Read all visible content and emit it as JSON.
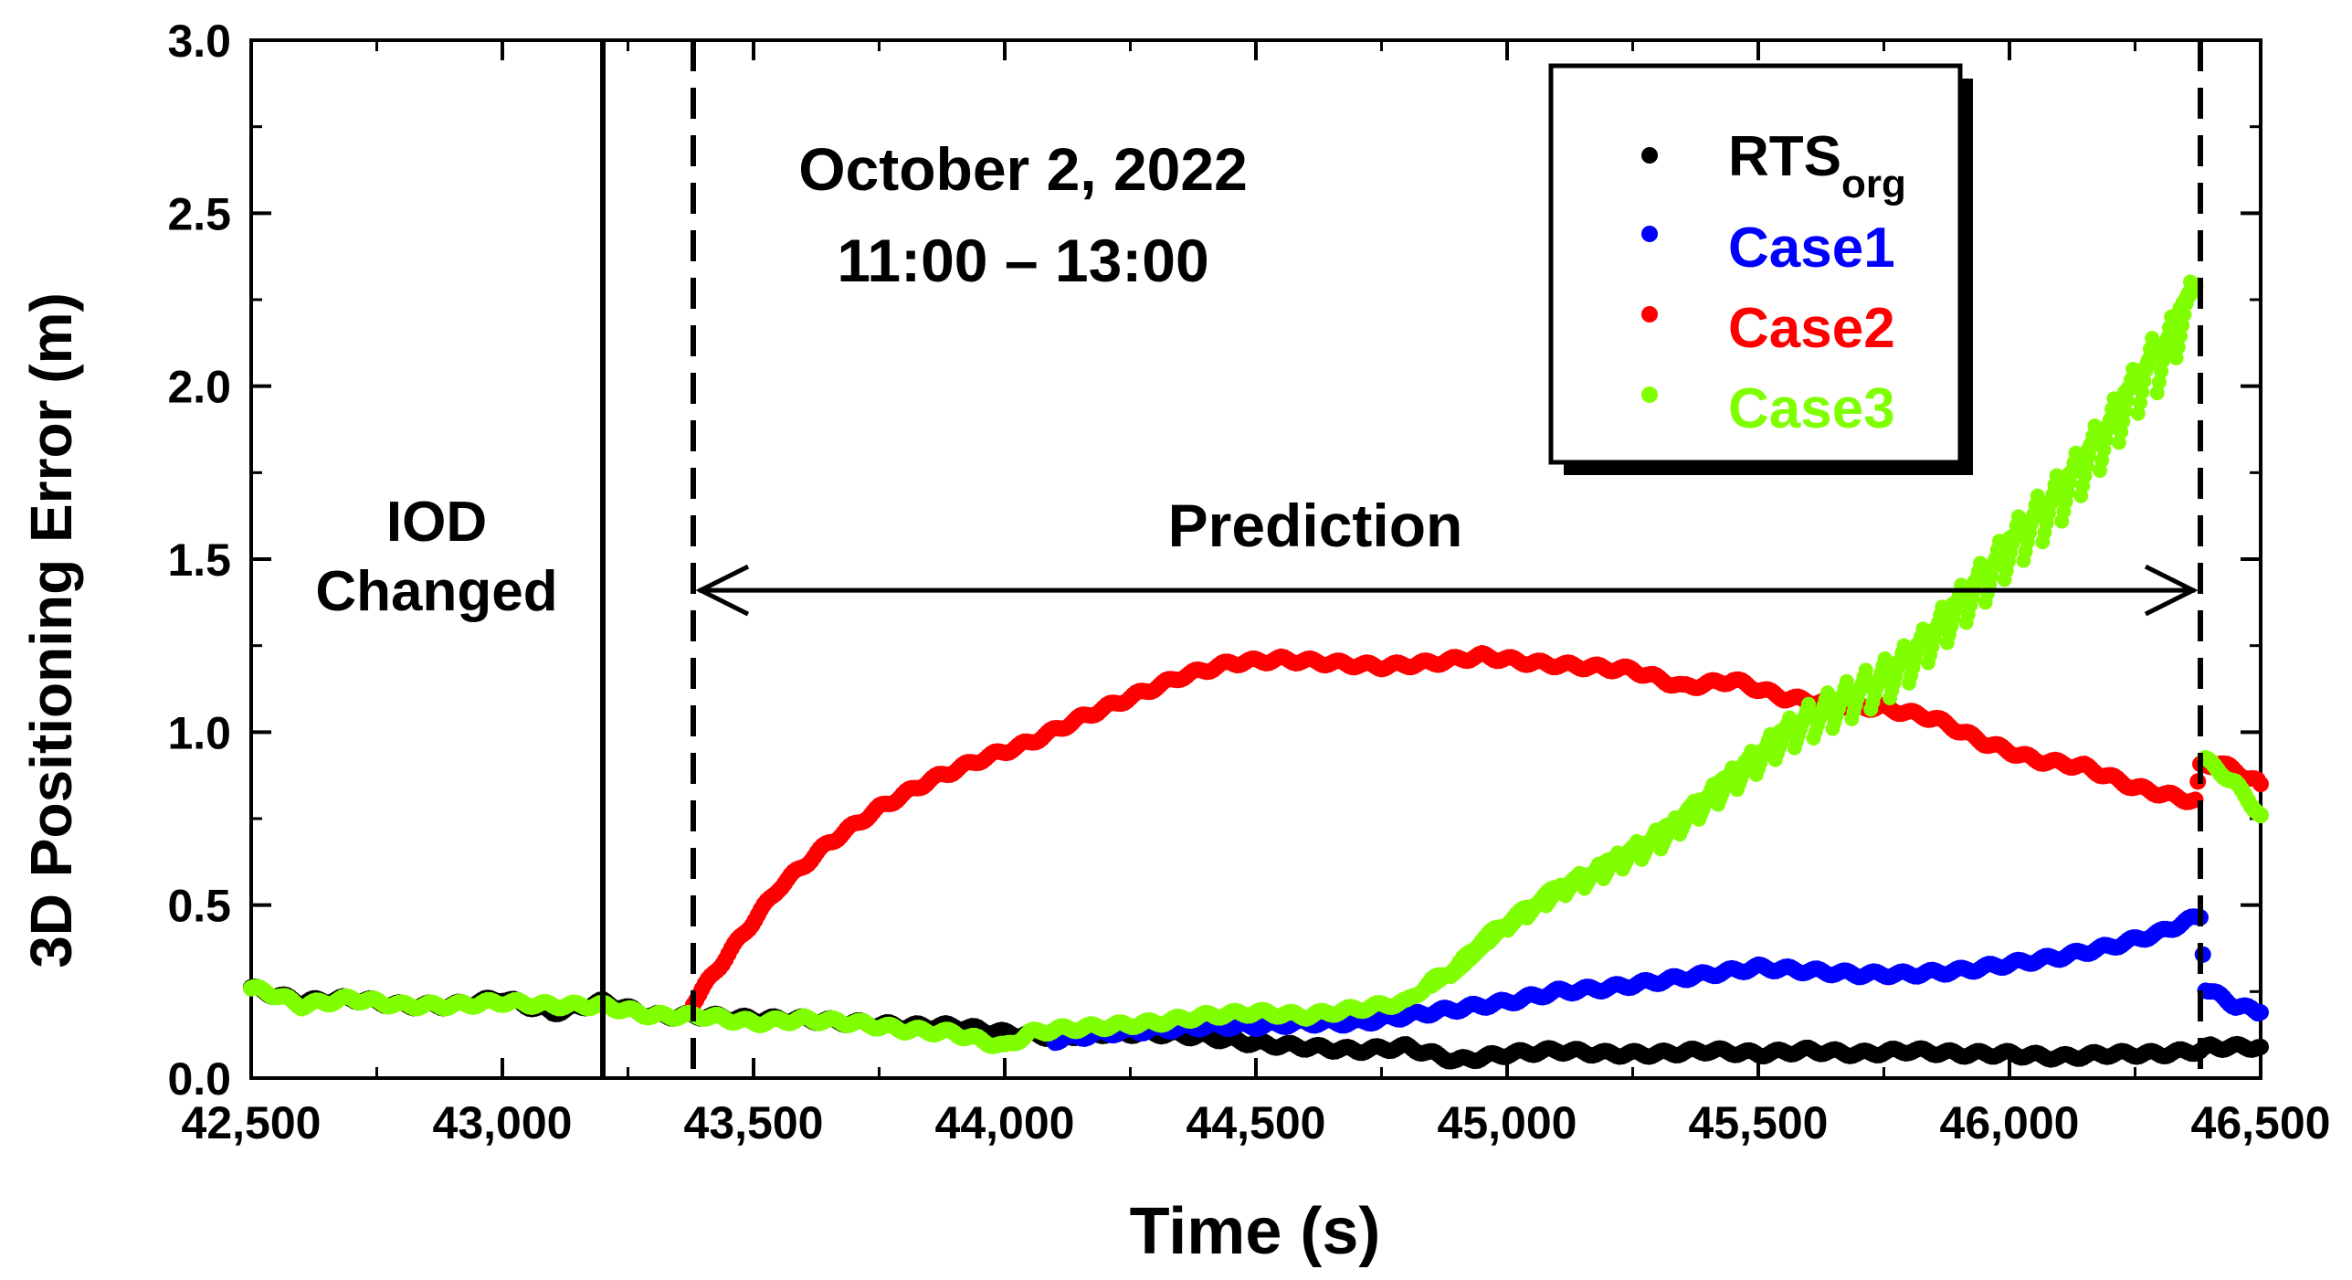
{
  "chart_data": {
    "type": "scatter",
    "title": "",
    "xlabel": "Time (s)",
    "ylabel": "3D Positioning Error (m)",
    "xlim": [
      42500,
      46500
    ],
    "ylim": [
      0,
      3.0
    ],
    "x_ticks": [
      42500,
      43000,
      43500,
      44000,
      44500,
      45000,
      45500,
      46000,
      46500
    ],
    "x_tick_labels": [
      "42,500",
      "43,000",
      "43,500",
      "44,000",
      "44,500",
      "45,000",
      "45,500",
      "46,000",
      "46,500"
    ],
    "y_ticks": [
      0,
      0.5,
      1.0,
      1.5,
      2.0,
      2.5,
      3.0
    ],
    "y_tick_labels": [
      "0.0",
      "0.5",
      "1.0",
      "1.5",
      "2.0",
      "2.5",
      "3.0"
    ],
    "grid": false,
    "legend_position": "top-right",
    "annotations": {
      "date_line1": "October 2, 2022",
      "date_line2": "11:00 – 13:00",
      "iod_line1": "IOD",
      "iod_line2": "Changed",
      "prediction": "Prediction"
    },
    "vertical_lines": [
      {
        "x": 43200,
        "style": "solid"
      },
      {
        "x": 43380,
        "style": "dashed"
      },
      {
        "x": 46380,
        "style": "dashed"
      }
    ],
    "prediction_span": [
      43380,
      46380
    ],
    "legend": [
      {
        "label": "RTS",
        "sub": "org",
        "color": "#000000"
      },
      {
        "label": "Case1",
        "sub": "",
        "color": "#0000ff"
      },
      {
        "label": "Case2",
        "sub": "",
        "color": "#ff0000"
      },
      {
        "label": "Case3",
        "sub": "",
        "color": "#80ff00"
      }
    ],
    "series": [
      {
        "name": "RTS_org",
        "color": "#000000",
        "points": [
          [
            42500,
            0.26
          ],
          [
            42600,
            0.22
          ],
          [
            42700,
            0.23
          ],
          [
            42800,
            0.21
          ],
          [
            42900,
            0.21
          ],
          [
            43000,
            0.23
          ],
          [
            43100,
            0.19
          ],
          [
            43200,
            0.22
          ],
          [
            43300,
            0.18
          ],
          [
            43400,
            0.18
          ],
          [
            43500,
            0.17
          ],
          [
            43600,
            0.17
          ],
          [
            43700,
            0.16
          ],
          [
            43800,
            0.15
          ],
          [
            43900,
            0.15
          ],
          [
            44000,
            0.13
          ],
          [
            44100,
            0.12
          ],
          [
            44200,
            0.13
          ],
          [
            44300,
            0.13
          ],
          [
            44400,
            0.12
          ],
          [
            44500,
            0.1
          ],
          [
            44600,
            0.09
          ],
          [
            44700,
            0.08
          ],
          [
            44800,
            0.09
          ],
          [
            44900,
            0.05
          ],
          [
            45000,
            0.07
          ],
          [
            45100,
            0.08
          ],
          [
            45200,
            0.07
          ],
          [
            45300,
            0.07
          ],
          [
            45400,
            0.08
          ],
          [
            45500,
            0.07
          ],
          [
            45600,
            0.08
          ],
          [
            45700,
            0.07
          ],
          [
            45800,
            0.08
          ],
          [
            45900,
            0.07
          ],
          [
            46000,
            0.07
          ],
          [
            46100,
            0.06
          ],
          [
            46200,
            0.07
          ],
          [
            46300,
            0.07
          ],
          [
            46380,
            0.08
          ],
          [
            46400,
            0.09
          ],
          [
            46500,
            0.09
          ]
        ]
      },
      {
        "name": "Case1",
        "color": "#0000ff",
        "points": [
          [
            44100,
            0.11
          ],
          [
            44200,
            0.13
          ],
          [
            44300,
            0.14
          ],
          [
            44400,
            0.15
          ],
          [
            44500,
            0.15
          ],
          [
            44600,
            0.16
          ],
          [
            44700,
            0.16
          ],
          [
            44800,
            0.18
          ],
          [
            44900,
            0.2
          ],
          [
            45000,
            0.22
          ],
          [
            45100,
            0.25
          ],
          [
            45200,
            0.26
          ],
          [
            45300,
            0.28
          ],
          [
            45400,
            0.3
          ],
          [
            45500,
            0.32
          ],
          [
            45600,
            0.31
          ],
          [
            45700,
            0.3
          ],
          [
            45800,
            0.3
          ],
          [
            45900,
            0.31
          ],
          [
            46000,
            0.33
          ],
          [
            46100,
            0.35
          ],
          [
            46200,
            0.38
          ],
          [
            46300,
            0.42
          ],
          [
            46380,
            0.47
          ],
          [
            46390,
            0.26
          ],
          [
            46450,
            0.21
          ],
          [
            46500,
            0.19
          ]
        ]
      },
      {
        "name": "Case2",
        "color": "#ff0000",
        "points": [
          [
            43380,
            0.22
          ],
          [
            43450,
            0.36
          ],
          [
            43550,
            0.55
          ],
          [
            43650,
            0.68
          ],
          [
            43750,
            0.78
          ],
          [
            43850,
            0.86
          ],
          [
            43950,
            0.92
          ],
          [
            44050,
            0.97
          ],
          [
            44150,
            1.04
          ],
          [
            44250,
            1.1
          ],
          [
            44350,
            1.16
          ],
          [
            44450,
            1.2
          ],
          [
            44550,
            1.21
          ],
          [
            44650,
            1.2
          ],
          [
            44750,
            1.19
          ],
          [
            44850,
            1.2
          ],
          [
            44950,
            1.22
          ],
          [
            45050,
            1.2
          ],
          [
            45150,
            1.19
          ],
          [
            45250,
            1.18
          ],
          [
            45350,
            1.13
          ],
          [
            45450,
            1.15
          ],
          [
            45550,
            1.1
          ],
          [
            45650,
            1.08
          ],
          [
            45750,
            1.07
          ],
          [
            45850,
            1.04
          ],
          [
            45950,
            0.97
          ],
          [
            46050,
            0.92
          ],
          [
            46150,
            0.9
          ],
          [
            46250,
            0.84
          ],
          [
            46370,
            0.8
          ],
          [
            46380,
            0.9
          ],
          [
            46420,
            0.91
          ],
          [
            46500,
            0.85
          ]
        ]
      },
      {
        "name": "Case3",
        "color": "#80ff00",
        "points": [
          [
            42500,
            0.26
          ],
          [
            42550,
            0.24
          ],
          [
            42600,
            0.21
          ],
          [
            42700,
            0.23
          ],
          [
            42800,
            0.21
          ],
          [
            42900,
            0.21
          ],
          [
            43000,
            0.22
          ],
          [
            43100,
            0.21
          ],
          [
            43200,
            0.21
          ],
          [
            43300,
            0.18
          ],
          [
            43400,
            0.18
          ],
          [
            43500,
            0.16
          ],
          [
            43600,
            0.17
          ],
          [
            43700,
            0.16
          ],
          [
            43800,
            0.14
          ],
          [
            43900,
            0.13
          ],
          [
            44000,
            0.09
          ],
          [
            44050,
            0.13
          ],
          [
            44100,
            0.14
          ],
          [
            44200,
            0.15
          ],
          [
            44300,
            0.16
          ],
          [
            44400,
            0.18
          ],
          [
            44500,
            0.19
          ],
          [
            44600,
            0.18
          ],
          [
            44700,
            0.2
          ],
          [
            44800,
            0.22
          ],
          [
            44850,
            0.28
          ],
          [
            44900,
            0.32
          ],
          [
            44950,
            0.4
          ],
          [
            45000,
            0.45
          ],
          [
            45050,
            0.5
          ],
          [
            45100,
            0.55
          ],
          [
            45150,
            0.58
          ],
          [
            45200,
            0.62
          ],
          [
            45250,
            0.66
          ],
          [
            45300,
            0.7
          ],
          [
            45350,
            0.76
          ],
          [
            45400,
            0.82
          ],
          [
            45450,
            0.88
          ],
          [
            45500,
            0.94
          ],
          [
            45550,
            1.0
          ],
          [
            45600,
            1.04
          ],
          [
            45650,
            1.08
          ],
          [
            45700,
            1.12
          ],
          [
            45750,
            1.16
          ],
          [
            45800,
            1.22
          ],
          [
            45850,
            1.3
          ],
          [
            45900,
            1.38
          ],
          [
            45950,
            1.46
          ],
          [
            46000,
            1.55
          ],
          [
            46050,
            1.62
          ],
          [
            46100,
            1.7
          ],
          [
            46150,
            1.8
          ],
          [
            46200,
            1.9
          ],
          [
            46250,
            2.02
          ],
          [
            46300,
            2.1
          ],
          [
            46370,
            2.3
          ],
          [
            46390,
            0.92
          ],
          [
            46450,
            0.85
          ],
          [
            46500,
            0.76
          ]
        ]
      }
    ]
  }
}
